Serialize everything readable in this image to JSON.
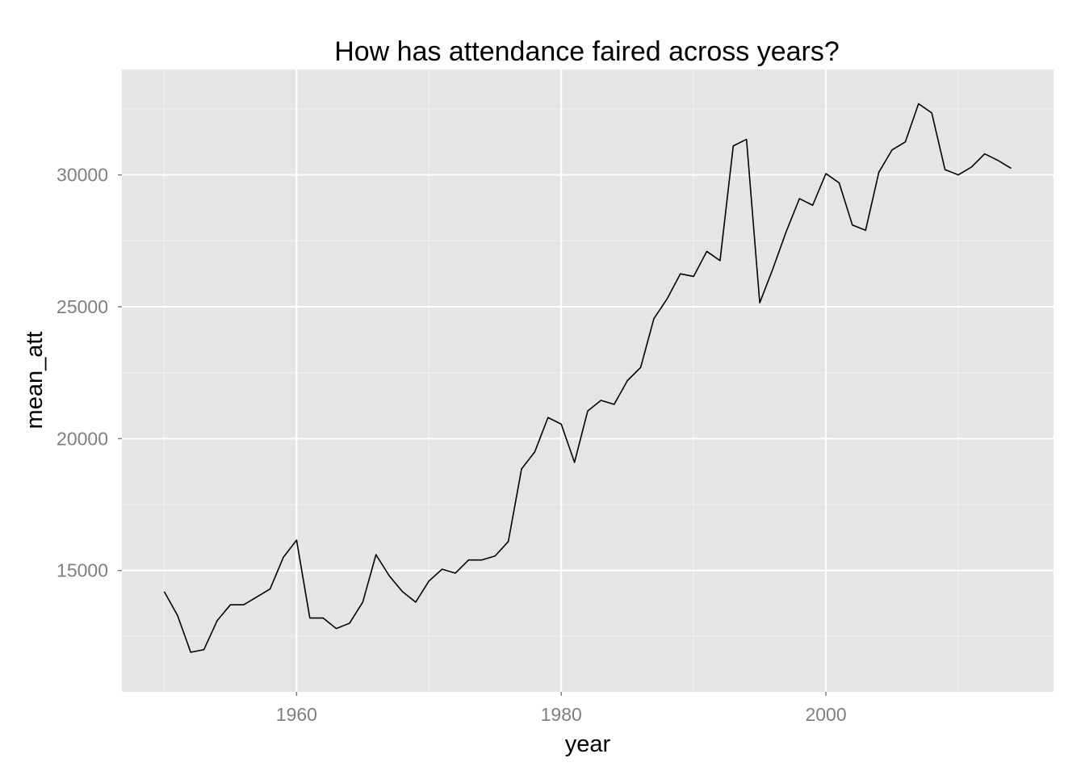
{
  "chart_data": {
    "type": "line",
    "title": "How has attendance faired across years?",
    "xlabel": "year",
    "ylabel": "mean_att",
    "xlim": [
      1946.8,
      2017.2
    ],
    "ylim": [
      10400,
      34000
    ],
    "x_ticks": [
      1960,
      1980,
      2000
    ],
    "x_minor_ticks": [
      1950,
      1970,
      1990,
      2010
    ],
    "y_ticks": [
      15000,
      20000,
      25000,
      30000
    ],
    "y_minor_ticks": [
      12500,
      17500,
      22500,
      27500,
      32500
    ],
    "grid": true,
    "legend": "none",
    "colors": {
      "panel_background": "#e5e5e5",
      "grid_major": "#ffffff",
      "grid_minor": "#f2f2f2",
      "line": "#000000",
      "tick_label": "#7f7f7f",
      "axis_title": "#000000"
    },
    "series": [
      {
        "x": [
          1950,
          1951,
          1952,
          1953,
          1954,
          1955,
          1956,
          1957,
          1958,
          1959,
          1960,
          1961,
          1962,
          1963,
          1964,
          1965,
          1966,
          1967,
          1968,
          1969,
          1970,
          1971,
          1972,
          1973,
          1974,
          1975,
          1976,
          1977,
          1978,
          1979,
          1980,
          1981,
          1982,
          1983,
          1984,
          1985,
          1986,
          1987,
          1988,
          1989,
          1990,
          1991,
          1992,
          1993,
          1994,
          1995,
          1996,
          1997,
          1998,
          1999,
          2000,
          2001,
          2002,
          2003,
          2004,
          2005,
          2006,
          2007,
          2008,
          2009,
          2010,
          2011,
          2012,
          2013,
          2014
        ],
        "values": [
          14200,
          13300,
          11900,
          12000,
          13100,
          13700,
          13700,
          14000,
          14300,
          15500,
          16150,
          13200,
          13200,
          12800,
          13000,
          13800,
          15600,
          14800,
          14200,
          13800,
          14600,
          15050,
          14900,
          15400,
          15400,
          15550,
          16100,
          18850,
          19500,
          20800,
          20550,
          19100,
          21050,
          21450,
          21300,
          22200,
          22700,
          24550,
          25300,
          26250,
          26150,
          27100,
          26750,
          31100,
          31350,
          25150,
          26450,
          27850,
          29100,
          28850,
          30050,
          29700,
          28100,
          27900,
          30100,
          30950,
          31250,
          32700,
          32350,
          30200,
          30000,
          30300,
          30800,
          30550,
          30250
        ]
      }
    ]
  }
}
